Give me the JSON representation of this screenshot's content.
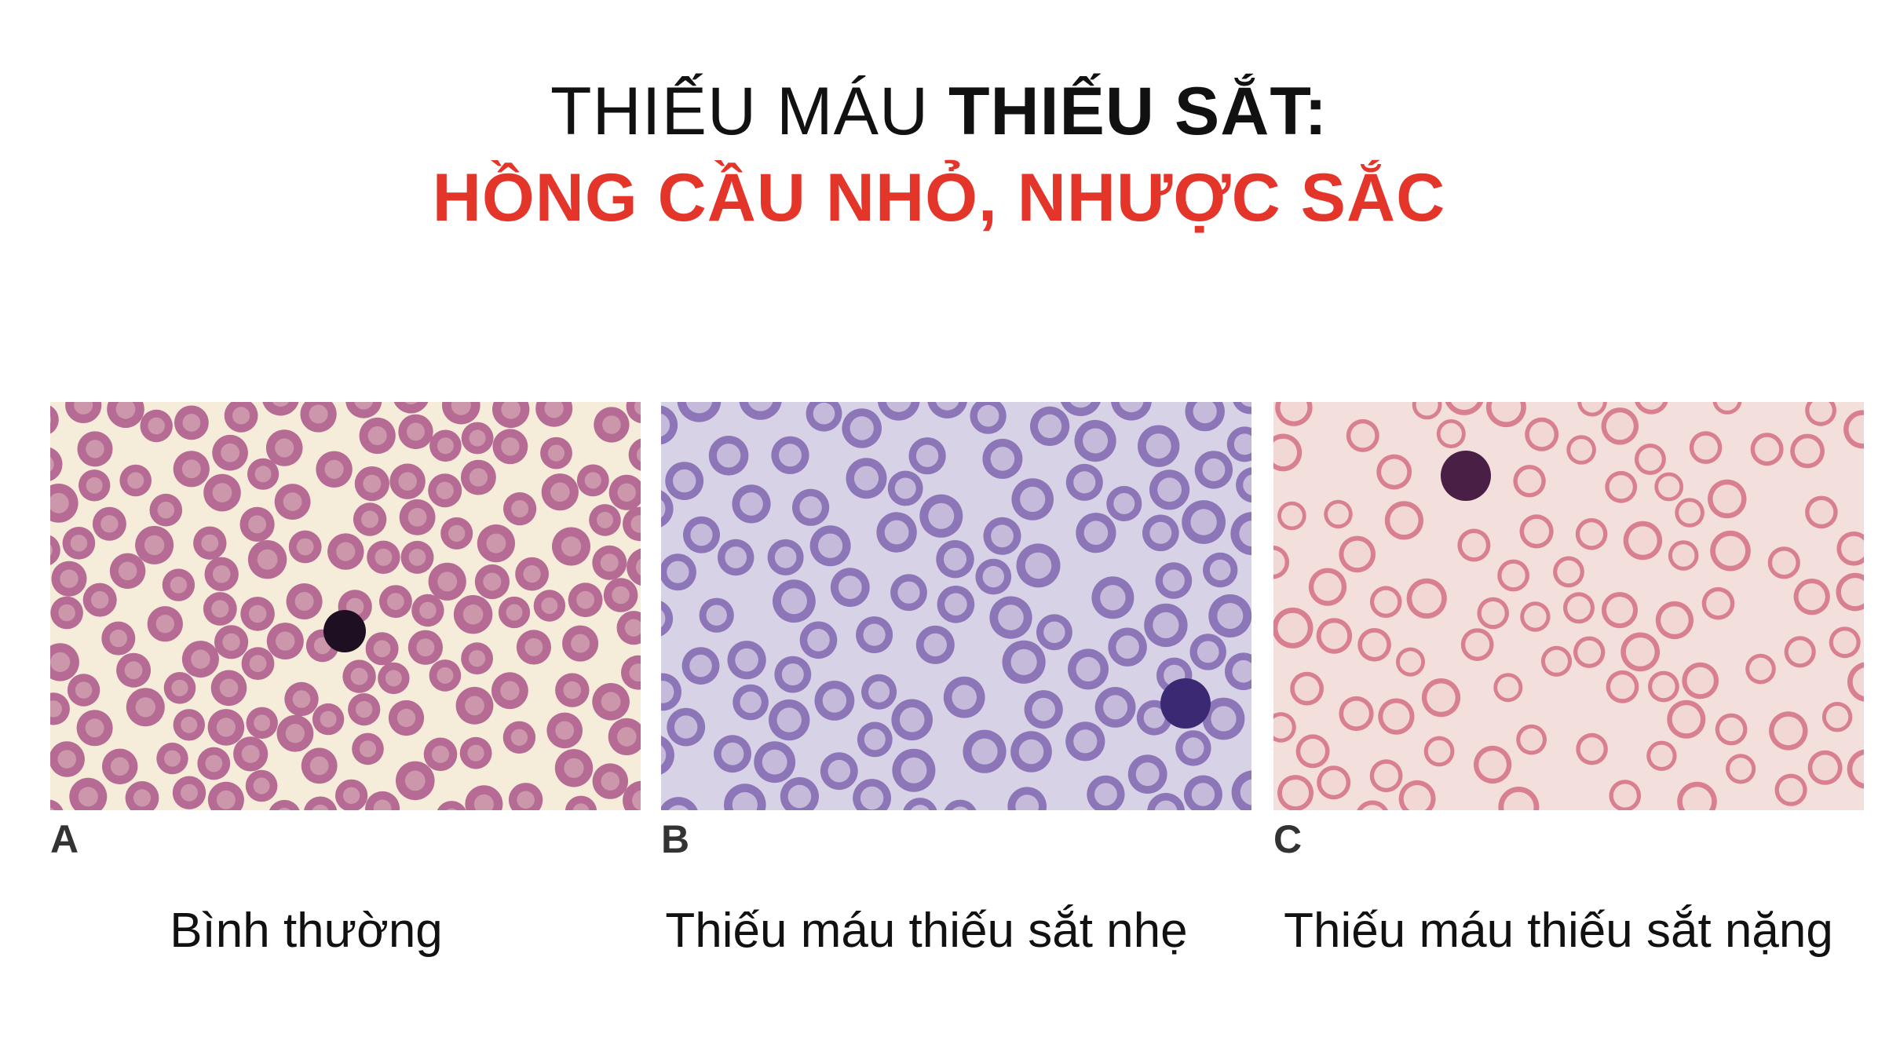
{
  "title": {
    "line1_regular": "THIẾU MÁU ",
    "line1_bold": "THIẾU SẮT:",
    "line2": "HỒNG CẦU NHỎ, NHƯỢC SẮC"
  },
  "panels": [
    {
      "letter": "A",
      "caption": "Bình thường"
    },
    {
      "letter": "B",
      "caption": "Thiếu máu thiếu sắt nhẹ"
    },
    {
      "letter": "C",
      "caption": "Thiếu máu thiếu sắt nặng"
    }
  ],
  "colors": {
    "title_accent": "#e4352a",
    "panel_a_bg": "#f5ecd9",
    "panel_a_cell": "#b56b93",
    "panel_b_bg": "#d8d2e6",
    "panel_b_cell": "#8c76b7",
    "panel_c_bg": "#f3dfdb",
    "panel_c_cell": "#d97f92"
  }
}
